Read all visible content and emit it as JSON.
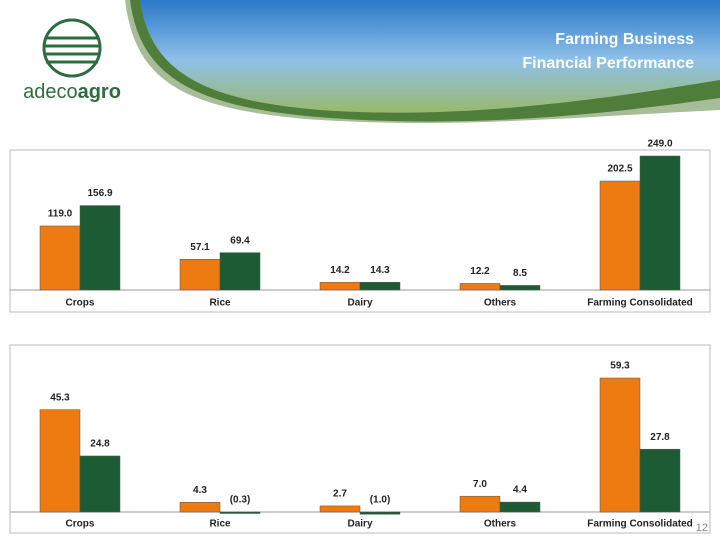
{
  "header": {
    "title_lines": [
      "Farming Business",
      "Financial Performance"
    ],
    "logo": [
      "adeco",
      "agro"
    ]
  },
  "page_number": "12",
  "chart_data": [
    {
      "type": "bar",
      "categories": [
        "Crops",
        "Rice",
        "Dairy",
        "Others",
        "Farming Consolidated"
      ],
      "series": [
        {
          "color": "#ee7a12",
          "values": [
            119.0,
            57.1,
            14.2,
            12.2,
            202.5
          ],
          "value_labels": [
            "119.0",
            "57.1",
            "14.2",
            "12.2",
            "202.5"
          ]
        },
        {
          "color": "#1d5b34",
          "values": [
            156.9,
            69.4,
            14.3,
            8.5,
            249.0
          ],
          "value_labels": [
            "156.9",
            "69.4",
            "14.3",
            "8.5",
            "249.0"
          ]
        }
      ]
    },
    {
      "type": "bar",
      "categories": [
        "Crops",
        "Rice",
        "Dairy",
        "Others",
        "Farming Consolidated"
      ],
      "series": [
        {
          "color": "#ee7a12",
          "values": [
            45.3,
            4.3,
            2.7,
            7.0,
            59.3
          ],
          "value_labels": [
            "45.3",
            "4.3",
            "2.7",
            "7.0",
            "59.3"
          ]
        },
        {
          "color": "#1d5b34",
          "values": [
            24.8,
            -0.3,
            -1.0,
            4.4,
            27.8
          ],
          "value_labels": [
            "24.8",
            "(0.3)",
            "(1.0)",
            "4.4",
            "27.8"
          ]
        }
      ]
    }
  ]
}
